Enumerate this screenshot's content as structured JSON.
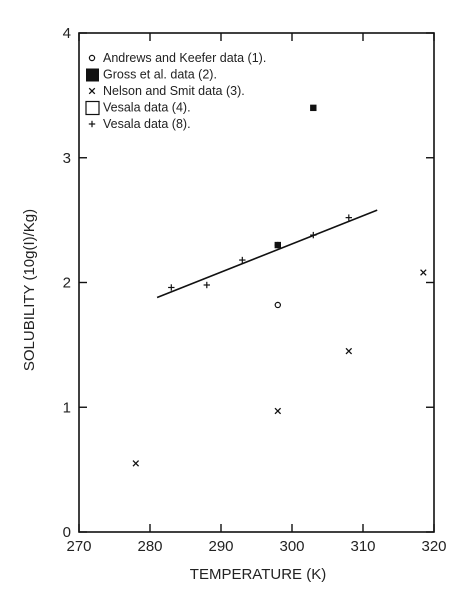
{
  "chart_data": {
    "type": "scatter",
    "title": "",
    "xlabel": "TEMPERATURE (K)",
    "ylabel": "SOLUBILITY (10g(I)/Kg)",
    "xlim": [
      270,
      320
    ],
    "ylim": [
      0,
      4
    ],
    "xticks": [
      270,
      280,
      290,
      300,
      310,
      320
    ],
    "yticks": [
      0,
      1,
      2,
      3,
      4
    ],
    "grid": false,
    "legend_position": "top-left",
    "series": [
      {
        "name": "Andrews and Keefer data (1).",
        "marker": "open-circle",
        "points": [
          [
            298,
            1.82
          ]
        ]
      },
      {
        "name": "Gross et al. data (2).",
        "marker": "filled-square",
        "points": [
          [
            303,
            3.4
          ],
          [
            298,
            2.3
          ]
        ]
      },
      {
        "name": "Nelson and Smit data (3).",
        "marker": "x",
        "points": [
          [
            278,
            0.55
          ],
          [
            298,
            0.97
          ],
          [
            308,
            1.45
          ],
          [
            318.5,
            2.08
          ]
        ]
      },
      {
        "name": "Vesala data (4).",
        "marker": "open-square",
        "points": []
      },
      {
        "name": "Vesala data (8).",
        "marker": "plus",
        "points": [
          [
            283,
            1.96
          ],
          [
            288,
            1.98
          ],
          [
            293,
            2.18
          ],
          [
            298,
            2.3
          ],
          [
            303,
            2.38
          ],
          [
            308,
            2.52
          ]
        ]
      }
    ],
    "fit_line": {
      "points": [
        [
          281,
          1.88
        ],
        [
          312,
          2.58
        ]
      ]
    }
  }
}
